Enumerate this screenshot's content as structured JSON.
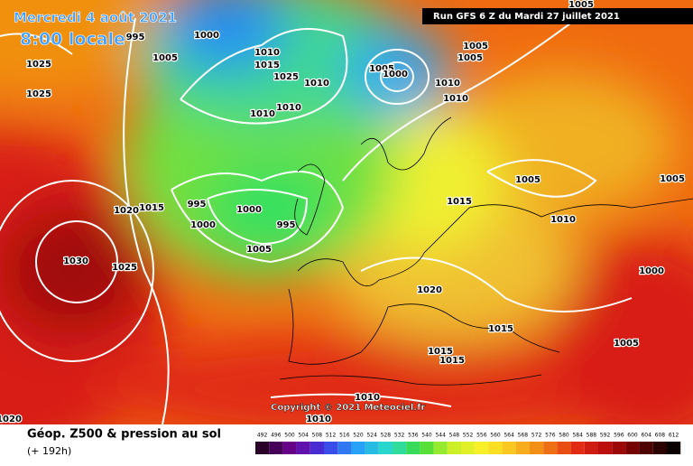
{
  "header": {
    "date": "Mercredi 4 août 2021",
    "time": "8:00 locale",
    "run": "Run GFS 6 Z du Mardi 27 juillet 2021"
  },
  "copyright": "Copyright © 2021 Meteociel.fr",
  "isobar_labels": [
    "995",
    "1000",
    "1025",
    "1025",
    "1005",
    "1010",
    "1015",
    "1025",
    "1010",
    "1010",
    "1010",
    "1005",
    "1000",
    "1005",
    "1005",
    "1010",
    "1010",
    "1005",
    "1005",
    "1005",
    "1010",
    "1015",
    "995",
    "1000",
    "1000",
    "995",
    "1005",
    "1015",
    "1020",
    "1030",
    "1025",
    "1020",
    "1000",
    "1015",
    "1015",
    "1015",
    "1005",
    "1020",
    "1010",
    "1010"
  ],
  "footer": {
    "title": "Géop. Z500 & pression au sol",
    "lead": "(+ 192h)"
  },
  "scale": [
    492,
    496,
    500,
    504,
    508,
    512,
    516,
    520,
    524,
    528,
    532,
    536,
    540,
    544,
    548,
    552,
    556,
    560,
    564,
    568,
    572,
    576,
    580,
    584,
    588,
    592,
    596,
    600,
    604,
    608,
    612
  ]
}
